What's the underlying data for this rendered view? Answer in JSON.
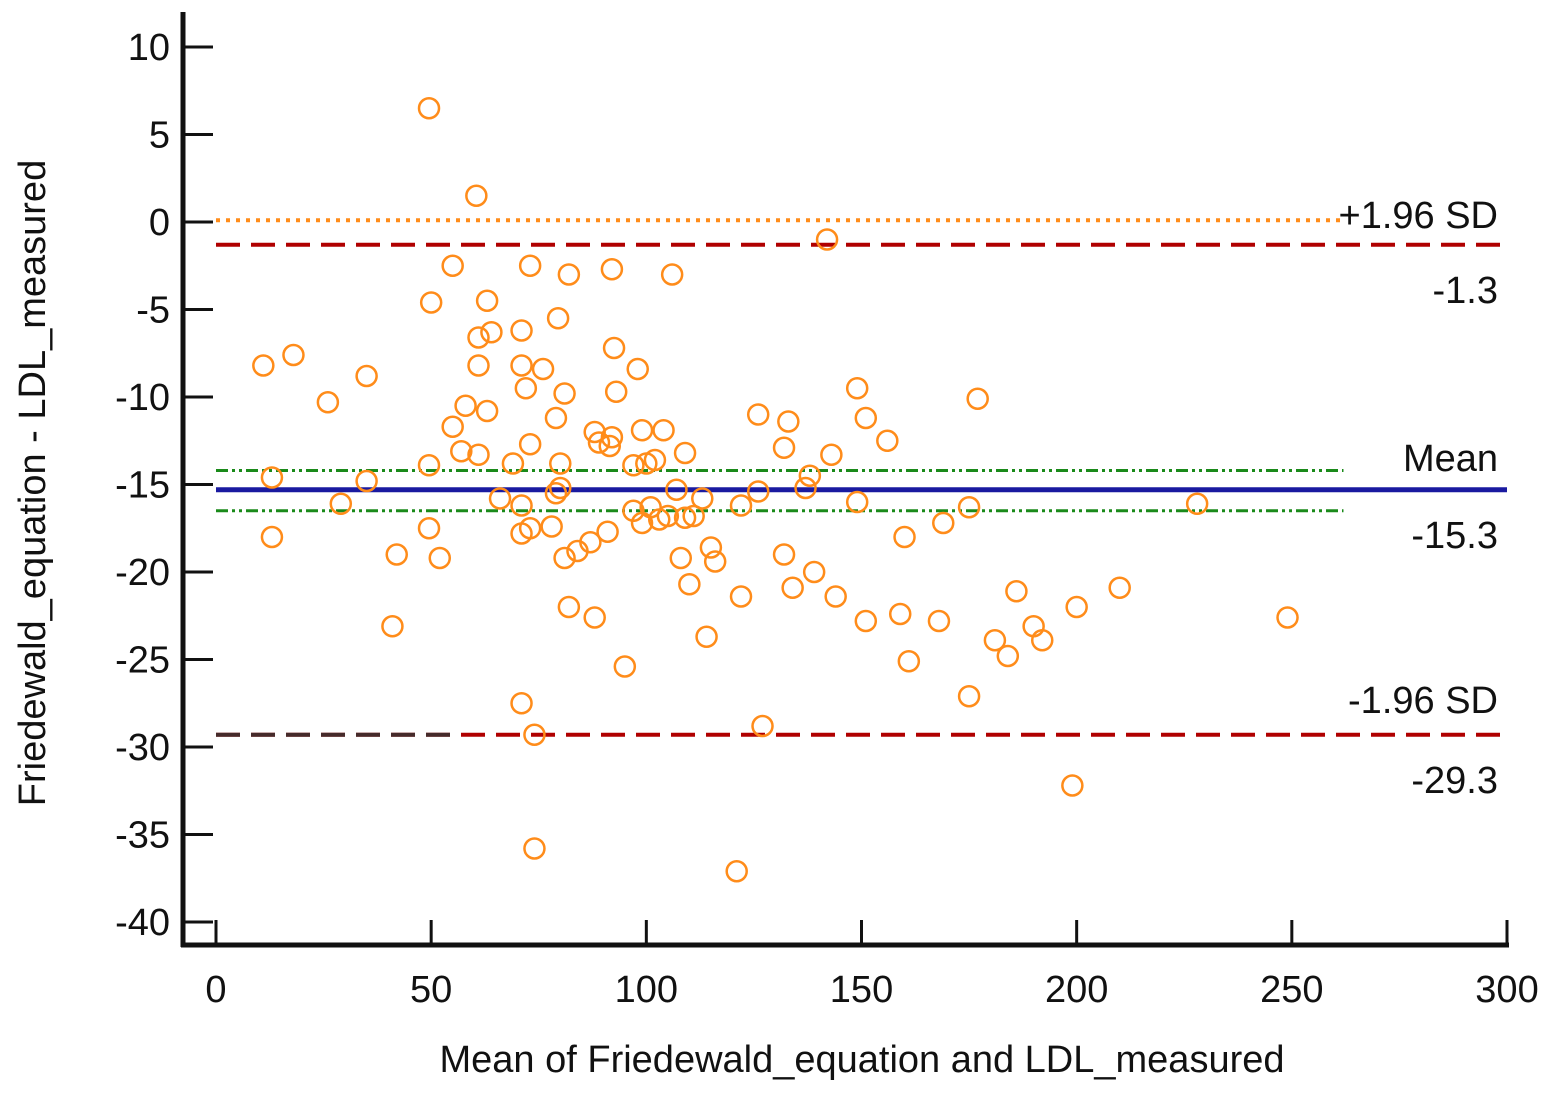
{
  "chart_data": {
    "type": "scatter",
    "title": "",
    "xlabel": "Mean of Friedewald_equation and LDL_measured",
    "ylabel": "Friedewald_equation - LDL_measured",
    "xlim": [
      0,
      300
    ],
    "ylim": [
      -40,
      10
    ],
    "x_ticks": [
      0,
      50,
      100,
      150,
      200,
      250,
      300
    ],
    "y_ticks": [
      10,
      5,
      0,
      -5,
      -10,
      -15,
      -20,
      -25,
      -30,
      -35,
      -40
    ],
    "grid": false,
    "reference_lines": {
      "upper_ci_loa": 0.1,
      "upper_loa": -1.3,
      "mean_ci_upper": -14.2,
      "mean": -15.3,
      "mean_ci_lower": -16.5,
      "lower_loa": -29.3
    },
    "labels": {
      "upper_loa_name": "+1.96 SD",
      "upper_loa_value": "-1.3",
      "mean_name": "Mean",
      "mean_value": "-15.3",
      "lower_loa_name": "-1.96 SD",
      "lower_loa_value": "-29.3"
    },
    "colors": {
      "points": "#ff8c1a",
      "mean_line": "#1a1aa0",
      "loa_line": "#b00000",
      "ci_mean": "#1a8a1a",
      "ci_loa_upper": "#ff8c1a",
      "ci_loa_lower": "#333333",
      "axis": "#111111"
    },
    "points": [
      [
        49.5,
        6.5
      ],
      [
        60.5,
        1.5
      ],
      [
        142,
        -1.0
      ],
      [
        55,
        -2.5
      ],
      [
        73,
        -2.5
      ],
      [
        82,
        -3.0
      ],
      [
        92,
        -2.7
      ],
      [
        106,
        -3.0
      ],
      [
        50,
        -4.6
      ],
      [
        63,
        -4.5
      ],
      [
        79.5,
        -5.5
      ],
      [
        71,
        -6.2
      ],
      [
        61,
        -6.6
      ],
      [
        64,
        -6.3
      ],
      [
        11,
        -8.2
      ],
      [
        18,
        -7.6
      ],
      [
        35,
        -8.8
      ],
      [
        61,
        -8.2
      ],
      [
        71,
        -8.2
      ],
      [
        76,
        -8.4
      ],
      [
        92.5,
        -7.2
      ],
      [
        98,
        -8.4
      ],
      [
        26,
        -10.3
      ],
      [
        58,
        -10.5
      ],
      [
        63,
        -10.8
      ],
      [
        72,
        -9.5
      ],
      [
        81,
        -9.8
      ],
      [
        93,
        -9.7
      ],
      [
        149,
        -9.5
      ],
      [
        177,
        -10.1
      ],
      [
        55,
        -11.7
      ],
      [
        79,
        -11.2
      ],
      [
        88,
        -12.0
      ],
      [
        92,
        -12.3
      ],
      [
        99,
        -11.9
      ],
      [
        104,
        -11.9
      ],
      [
        126,
        -11.0
      ],
      [
        133,
        -11.4
      ],
      [
        151,
        -11.2
      ],
      [
        57,
        -13.1
      ],
      [
        61,
        -13.3
      ],
      [
        73,
        -12.7
      ],
      [
        89,
        -12.6
      ],
      [
        91.5,
        -12.8
      ],
      [
        102,
        -13.6
      ],
      [
        109,
        -13.2
      ],
      [
        132,
        -12.9
      ],
      [
        143,
        -13.3
      ],
      [
        156,
        -12.5
      ],
      [
        13,
        -14.6
      ],
      [
        35,
        -14.8
      ],
      [
        49.5,
        -13.9
      ],
      [
        69,
        -13.8
      ],
      [
        80,
        -13.8
      ],
      [
        97,
        -13.9
      ],
      [
        100,
        -13.8
      ],
      [
        138,
        -14.5
      ],
      [
        29,
        -16.1
      ],
      [
        66,
        -15.8
      ],
      [
        71,
        -16.2
      ],
      [
        79,
        -15.5
      ],
      [
        80,
        -15.2
      ],
      [
        97,
        -16.5
      ],
      [
        101,
        -16.3
      ],
      [
        105,
        -16.8
      ],
      [
        107,
        -15.3
      ],
      [
        109,
        -16.9
      ],
      [
        113,
        -15.8
      ],
      [
        122,
        -16.2
      ],
      [
        126,
        -15.4
      ],
      [
        137,
        -15.2
      ],
      [
        149,
        -16.0
      ],
      [
        175,
        -16.3
      ],
      [
        228,
        -16.1
      ],
      [
        13,
        -18.0
      ],
      [
        49.5,
        -17.5
      ],
      [
        71,
        -17.8
      ],
      [
        73,
        -17.5
      ],
      [
        78,
        -17.4
      ],
      [
        91,
        -17.7
      ],
      [
        99,
        -17.2
      ],
      [
        103,
        -17.0
      ],
      [
        111,
        -16.8
      ],
      [
        160,
        -18.0
      ],
      [
        169,
        -17.2
      ],
      [
        42,
        -19.0
      ],
      [
        52,
        -19.2
      ],
      [
        81,
        -19.2
      ],
      [
        84,
        -18.8
      ],
      [
        87,
        -18.3
      ],
      [
        108,
        -19.2
      ],
      [
        115,
        -18.6
      ],
      [
        116,
        -19.4
      ],
      [
        132,
        -19.0
      ],
      [
        82,
        -22.0
      ],
      [
        88,
        -22.6
      ],
      [
        110,
        -20.7
      ],
      [
        122,
        -21.4
      ],
      [
        134,
        -20.9
      ],
      [
        139,
        -20.0
      ],
      [
        144,
        -21.4
      ],
      [
        151,
        -22.8
      ],
      [
        159,
        -22.4
      ],
      [
        186,
        -21.1
      ],
      [
        200,
        -22.0
      ],
      [
        210,
        -20.9
      ],
      [
        41,
        -23.1
      ],
      [
        95,
        -25.4
      ],
      [
        114,
        -23.7
      ],
      [
        161,
        -25.1
      ],
      [
        168,
        -22.8
      ],
      [
        181,
        -23.9
      ],
      [
        184,
        -24.8
      ],
      [
        190,
        -23.1
      ],
      [
        192,
        -23.9
      ],
      [
        249,
        -22.6
      ],
      [
        71,
        -27.5
      ],
      [
        74,
        -29.3
      ],
      [
        127,
        -28.8
      ],
      [
        175,
        -27.1
      ],
      [
        199,
        -32.2
      ],
      [
        74,
        -35.8
      ],
      [
        121,
        -37.1
      ]
    ]
  }
}
